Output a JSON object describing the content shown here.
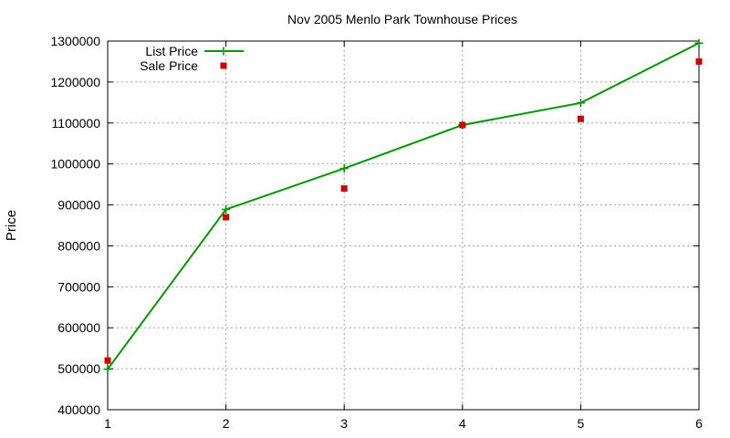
{
  "chart_data": {
    "type": "line",
    "title": "Nov 2005 Menlo Park Townhouse Prices",
    "xlabel": "",
    "ylabel": "Price",
    "x": [
      1,
      2,
      3,
      4,
      5,
      6
    ],
    "xlim": [
      1,
      6
    ],
    "ylim": [
      400000,
      1300000
    ],
    "xticks": [
      1,
      2,
      3,
      4,
      5,
      6
    ],
    "yticks": [
      400000,
      500000,
      600000,
      700000,
      800000,
      900000,
      1000000,
      1100000,
      1200000,
      1300000
    ],
    "grid": true,
    "legend_position": "top-left",
    "series": [
      {
        "name": "List Price",
        "style": "linespoints",
        "marker": "plus",
        "color": "#009900",
        "values": [
          499000,
          889000,
          989000,
          1095000,
          1149000,
          1295000
        ]
      },
      {
        "name": "Sale Price",
        "style": "points",
        "marker": "square",
        "color": "#cc0000",
        "values": [
          520000,
          870000,
          940000,
          1095000,
          1110000,
          1250000
        ]
      }
    ]
  }
}
